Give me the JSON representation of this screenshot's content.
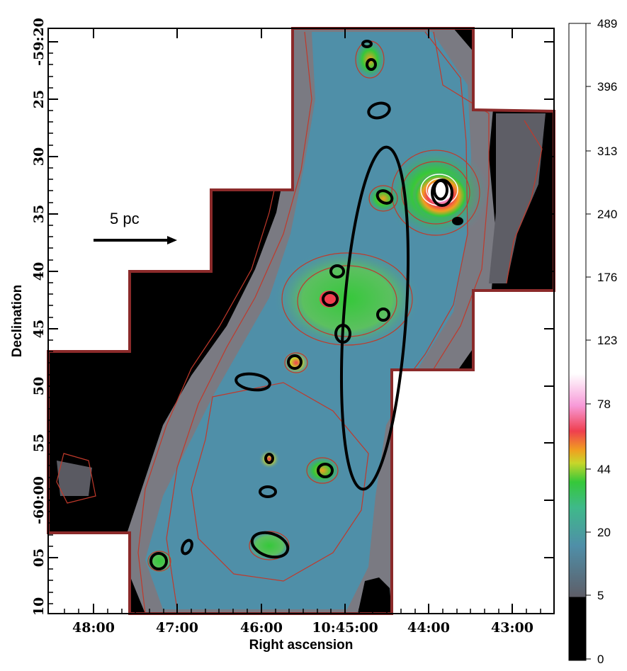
{
  "map": {
    "xlabel": "Right ascension",
    "ylabel": "Declination",
    "ra_ticks": [
      "48:00",
      "47:00",
      "46:00",
      "10:45:00",
      "44:00",
      "43:00"
    ],
    "dec_ticks": [
      "-59:20",
      "25",
      "30",
      "35",
      "40",
      "45",
      "50",
      "55",
      "-60:00",
      "05",
      "10"
    ],
    "scalebar_label": "5 pc"
  },
  "colorbar": {
    "labels": [
      "489",
      "396",
      "313",
      "240",
      "176",
      "123",
      "78",
      "44",
      "20",
      "5",
      "0"
    ]
  },
  "colors": {
    "footprint_outline": "#8b2a2a",
    "contour": "#c0392b",
    "region_ellipse": "#000000",
    "background_black": "#000000",
    "colorscale": [
      "#000000",
      "#6f6f78",
      "#4f8fa8",
      "#3fb98a",
      "#35c83a",
      "#c8d62a",
      "#f0a020",
      "#ef3f4f",
      "#f79ad8",
      "#ffffff"
    ]
  }
}
